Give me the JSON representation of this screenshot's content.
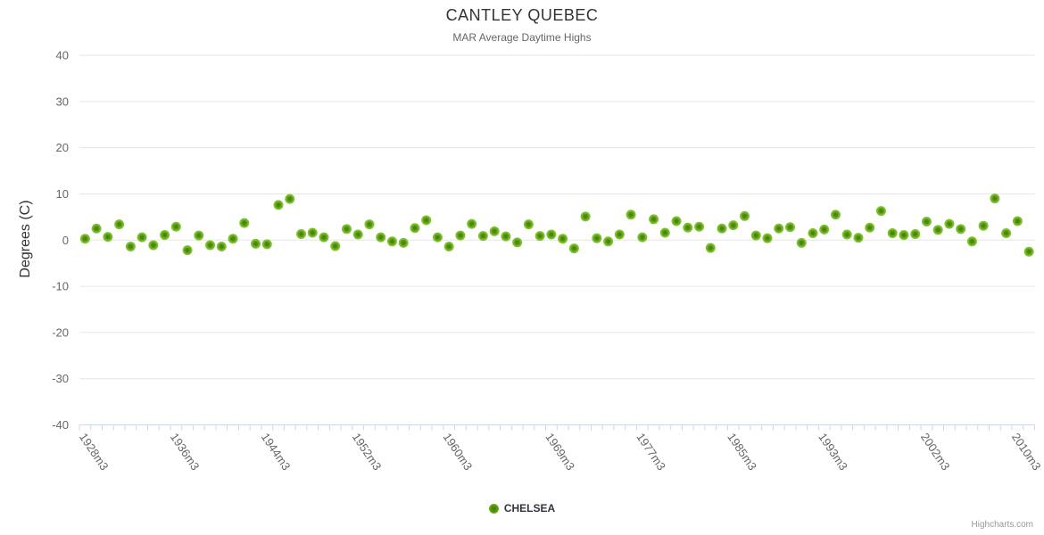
{
  "header": {
    "title": "CANTLEY QUEBEC",
    "subtitle": "MAR Average Daytime Highs"
  },
  "legend": {
    "series_label": "CHELSEA"
  },
  "credits": {
    "label": "Highcharts.com"
  },
  "colors": {
    "marker_outer": "#7fc22e",
    "marker_core": "#3f7c02",
    "grid_line": "#e6e6e6",
    "axis_line": "#ccd6eb",
    "tick_mark": "#ccd6eb",
    "axis_label": "#666666",
    "title_text": "#333333",
    "subtitle_text": "#666666"
  },
  "chart_data": {
    "type": "scatter",
    "title": "CANTLEY QUEBEC",
    "subtitle": "MAR Average Daytime Highs",
    "xlabel": "",
    "ylabel": "Degrees (C)",
    "ylim": [
      -40,
      40
    ],
    "y_ticks": [
      40,
      30,
      20,
      10,
      0,
      -10,
      -20,
      -30,
      -40
    ],
    "grid": "horizontal",
    "legend_position": "bottom-center",
    "x_label_suffix": "m3",
    "x_tick_labels": [
      "1928m3",
      "1936m3",
      "1944m3",
      "1952m3",
      "1960m3",
      "1969m3",
      "1977m3",
      "1985m3",
      "1993m3",
      "2002m3",
      "2010m3"
    ],
    "x_tick_label_indices": [
      0,
      8,
      16,
      24,
      32,
      41,
      49,
      57,
      65,
      74,
      82
    ],
    "series": [
      {
        "name": "CHELSEA",
        "x": [
          1928,
          1929,
          1930,
          1931,
          1932,
          1933,
          1934,
          1935,
          1936,
          1937,
          1938,
          1939,
          1940,
          1941,
          1942,
          1943,
          1944,
          1945,
          1946,
          1947,
          1948,
          1949,
          1950,
          1951,
          1952,
          1953,
          1954,
          1955,
          1956,
          1957,
          1958,
          1959,
          1960,
          1961,
          1962,
          1963,
          1964,
          1965,
          1966,
          1967,
          1968,
          1969,
          1970,
          1971,
          1972,
          1973,
          1974,
          1975,
          1976,
          1977,
          1978,
          1979,
          1980,
          1981,
          1982,
          1983,
          1984,
          1985,
          1986,
          1987,
          1988,
          1989,
          1990,
          1991,
          1992,
          1993,
          1994,
          1995,
          1996,
          1997,
          1998,
          1999,
          2000,
          2001,
          2002,
          2003,
          2004,
          2005,
          2006,
          2007,
          2008,
          2009,
          2010,
          2011
        ],
        "values": [
          0.3,
          2.5,
          0.7,
          3.4,
          -1.4,
          0.6,
          -1.1,
          1.1,
          2.9,
          -2.2,
          1.0,
          -1.1,
          -1.4,
          0.3,
          3.7,
          -0.8,
          -0.9,
          7.6,
          8.9,
          1.3,
          1.6,
          0.6,
          -1.3,
          2.4,
          1.2,
          3.4,
          0.6,
          -0.3,
          -0.6,
          2.6,
          4.3,
          0.6,
          -1.4,
          1.0,
          3.5,
          0.9,
          1.9,
          0.8,
          -0.5,
          3.4,
          0.9,
          1.2,
          0.3,
          -1.8,
          5.1,
          0.4,
          -0.3,
          1.2,
          5.5,
          0.6,
          4.5,
          1.6,
          4.1,
          2.7,
          2.9,
          -1.7,
          2.5,
          3.2,
          5.2,
          1.0,
          0.4,
          2.5,
          2.8,
          -0.6,
          1.5,
          2.3,
          5.5,
          1.2,
          0.5,
          2.7,
          6.3,
          1.5,
          1.1,
          1.3,
          4.0,
          2.2,
          3.5,
          2.4,
          -0.3,
          3.1,
          9.0,
          1.5,
          4.1,
          -2.5
        ]
      }
    ]
  }
}
